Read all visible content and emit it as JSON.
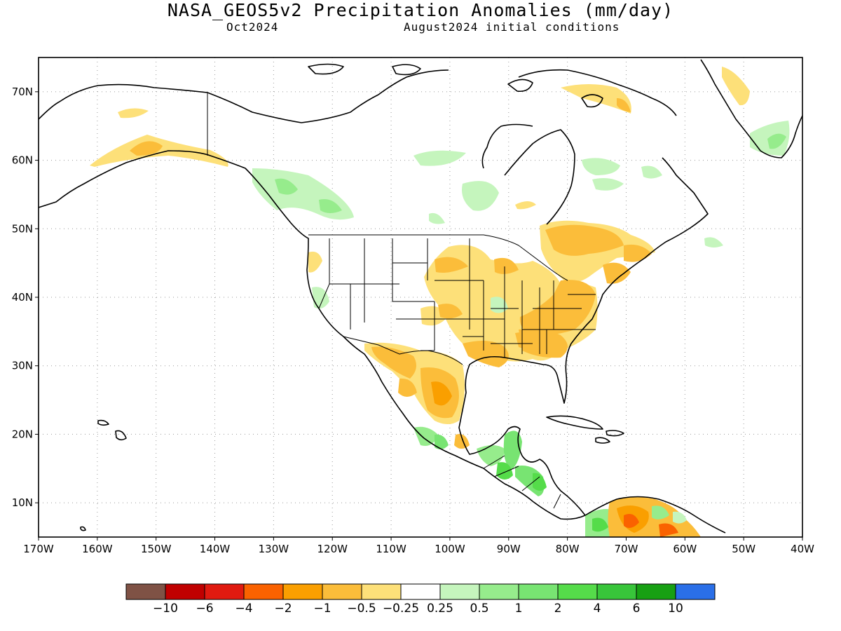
{
  "title": "NASA_GEOS5v2 Precipitation Anomalies (mm/day)",
  "subtitle_left": "Oct2024",
  "subtitle_right": "August2024 initial conditions",
  "map": {
    "lon_range": [
      -170,
      -40
    ],
    "lat_range": [
      5,
      75
    ],
    "lon_ticks": [
      {
        "value": -170,
        "label": "170W"
      },
      {
        "value": -160,
        "label": "160W"
      },
      {
        "value": -150,
        "label": "150W"
      },
      {
        "value": -140,
        "label": "140W"
      },
      {
        "value": -130,
        "label": "130W"
      },
      {
        "value": -120,
        "label": "120W"
      },
      {
        "value": -110,
        "label": "110W"
      },
      {
        "value": -100,
        "label": "100W"
      },
      {
        "value": -90,
        "label": "90W"
      },
      {
        "value": -80,
        "label": "80W"
      },
      {
        "value": -70,
        "label": "70W"
      },
      {
        "value": -60,
        "label": "60W"
      },
      {
        "value": -50,
        "label": "50W"
      },
      {
        "value": -40,
        "label": "40W"
      }
    ],
    "lat_ticks": [
      {
        "value": 10,
        "label": "10N"
      },
      {
        "value": 20,
        "label": "20N"
      },
      {
        "value": 30,
        "label": "30N"
      },
      {
        "value": 40,
        "label": "40N"
      },
      {
        "value": 50,
        "label": "50N"
      },
      {
        "value": 60,
        "label": "60N"
      },
      {
        "value": 70,
        "label": "70N"
      }
    ],
    "grid": "dotted"
  },
  "colorbar": {
    "colors": [
      "#7f5245",
      "#c00000",
      "#e01a10",
      "#fa6200",
      "#fa9f00",
      "#fbbd3a",
      "#fde079",
      "#ffffff",
      "#c5f5bd",
      "#96ec8c",
      "#78e472",
      "#55dc4a",
      "#38c53a",
      "#17a013",
      "#2a6fe8"
    ],
    "labels": [
      "−10",
      "−6",
      "−4",
      "−2",
      "−1",
      "−0.5",
      "−0.25",
      "0.25",
      "0.5",
      "1",
      "2",
      "4",
      "6",
      "10"
    ]
  }
}
